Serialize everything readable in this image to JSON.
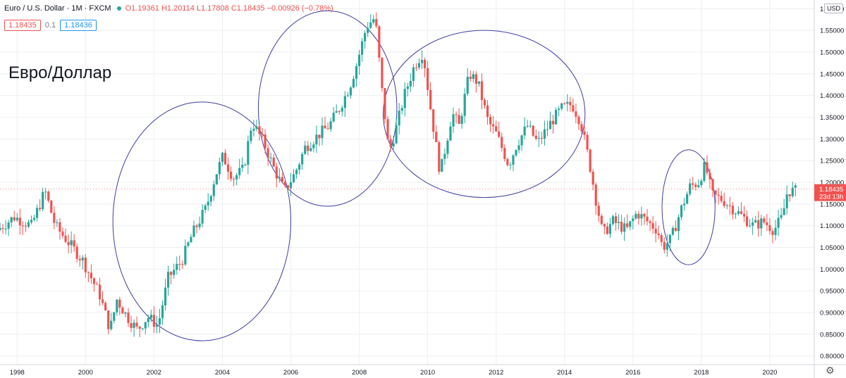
{
  "header": {
    "symbol": "Euro / U.S. Dollar · 1M · FXCM",
    "ohlc": "O1.19361 H1.20114 L1.17808 C1.18435 −0.00926 (−0.78%)",
    "bid_price": "1.18435",
    "spread": "0.1",
    "ask_price": "1.18436"
  },
  "watermark": "Евро/Доллар",
  "currency_button": "USD",
  "settings_icon": "gear-icon",
  "colors": {
    "up": "#26a69a",
    "down": "#ef5350",
    "ellipse": "#3f3f9f",
    "grid": "#eceff2"
  },
  "chart_data": {
    "type": "candlestick",
    "title": "Euro / U.S. Dollar",
    "interval": "1M",
    "source": "FXCM",
    "x_ticks": [
      "1998",
      "2000",
      "2002",
      "2004",
      "2006",
      "2008",
      "2010",
      "2012",
      "2014",
      "2016",
      "2018",
      "2020"
    ],
    "y_ticks": [
      "0.80000",
      "0.85000",
      "0.90000",
      "0.95000",
      "1.00000",
      "1.05000",
      "1.10000",
      "1.15000",
      "1.20000",
      "1.25000",
      "1.30000",
      "1.35000",
      "1.40000",
      "1.45000",
      "1.50000",
      "1.55000",
      "1.60000"
    ],
    "ylim": [
      0.78,
      1.62
    ],
    "xlim": [
      1997.5,
      2021.3
    ],
    "last_price": "1.18435",
    "countdown": "23d 13h",
    "close_series": [
      {
        "t": 1997.5,
        "v": 1.09
      },
      {
        "t": 1998.0,
        "v": 1.12
      },
      {
        "t": 1998.5,
        "v": 1.1
      },
      {
        "t": 1998.9,
        "v": 1.18
      },
      {
        "t": 1999.2,
        "v": 1.1
      },
      {
        "t": 1999.6,
        "v": 1.06
      },
      {
        "t": 2000.0,
        "v": 1.02
      },
      {
        "t": 2000.5,
        "v": 0.94
      },
      {
        "t": 2000.8,
        "v": 0.86
      },
      {
        "t": 2001.0,
        "v": 0.93
      },
      {
        "t": 2001.3,
        "v": 0.89
      },
      {
        "t": 2001.6,
        "v": 0.86
      },
      {
        "t": 2001.9,
        "v": 0.89
      },
      {
        "t": 2002.2,
        "v": 0.87
      },
      {
        "t": 2002.5,
        "v": 0.98
      },
      {
        "t": 2002.9,
        "v": 1.02
      },
      {
        "t": 2003.2,
        "v": 1.08
      },
      {
        "t": 2003.6,
        "v": 1.14
      },
      {
        "t": 2003.9,
        "v": 1.22
      },
      {
        "t": 2004.1,
        "v": 1.26
      },
      {
        "t": 2004.4,
        "v": 1.21
      },
      {
        "t": 2004.7,
        "v": 1.23
      },
      {
        "t": 2004.95,
        "v": 1.34
      },
      {
        "t": 2005.3,
        "v": 1.29
      },
      {
        "t": 2005.6,
        "v": 1.23
      },
      {
        "t": 2005.9,
        "v": 1.18
      },
      {
        "t": 2006.2,
        "v": 1.22
      },
      {
        "t": 2006.5,
        "v": 1.28
      },
      {
        "t": 2006.9,
        "v": 1.31
      },
      {
        "t": 2007.2,
        "v": 1.33
      },
      {
        "t": 2007.5,
        "v": 1.37
      },
      {
        "t": 2007.8,
        "v": 1.42
      },
      {
        "t": 2008.0,
        "v": 1.47
      },
      {
        "t": 2008.3,
        "v": 1.56
      },
      {
        "t": 2008.55,
        "v": 1.58
      },
      {
        "t": 2008.75,
        "v": 1.41
      },
      {
        "t": 2008.95,
        "v": 1.27
      },
      {
        "t": 2009.15,
        "v": 1.32
      },
      {
        "t": 2009.4,
        "v": 1.4
      },
      {
        "t": 2009.7,
        "v": 1.47
      },
      {
        "t": 2009.95,
        "v": 1.5
      },
      {
        "t": 2010.15,
        "v": 1.38
      },
      {
        "t": 2010.45,
        "v": 1.22
      },
      {
        "t": 2010.8,
        "v": 1.36
      },
      {
        "t": 2011.0,
        "v": 1.33
      },
      {
        "t": 2011.3,
        "v": 1.45
      },
      {
        "t": 2011.55,
        "v": 1.43
      },
      {
        "t": 2011.85,
        "v": 1.34
      },
      {
        "t": 2012.1,
        "v": 1.31
      },
      {
        "t": 2012.45,
        "v": 1.24
      },
      {
        "t": 2012.7,
        "v": 1.29
      },
      {
        "t": 2013.0,
        "v": 1.33
      },
      {
        "t": 2013.3,
        "v": 1.29
      },
      {
        "t": 2013.7,
        "v": 1.34
      },
      {
        "t": 2014.0,
        "v": 1.37
      },
      {
        "t": 2014.3,
        "v": 1.38
      },
      {
        "t": 2014.55,
        "v": 1.34
      },
      {
        "t": 2014.8,
        "v": 1.25
      },
      {
        "t": 2015.0,
        "v": 1.16
      },
      {
        "t": 2015.2,
        "v": 1.08
      },
      {
        "t": 2015.5,
        "v": 1.11
      },
      {
        "t": 2015.9,
        "v": 1.09
      },
      {
        "t": 2016.2,
        "v": 1.13
      },
      {
        "t": 2016.5,
        "v": 1.11
      },
      {
        "t": 2016.8,
        "v": 1.09
      },
      {
        "t": 2016.95,
        "v": 1.05
      },
      {
        "t": 2017.2,
        "v": 1.07
      },
      {
        "t": 2017.5,
        "v": 1.14
      },
      {
        "t": 2017.75,
        "v": 1.19
      },
      {
        "t": 2018.0,
        "v": 1.2
      },
      {
        "t": 2018.2,
        "v": 1.24
      },
      {
        "t": 2018.4,
        "v": 1.17
      },
      {
        "t": 2018.7,
        "v": 1.16
      },
      {
        "t": 2019.0,
        "v": 1.14
      },
      {
        "t": 2019.3,
        "v": 1.12
      },
      {
        "t": 2019.6,
        "v": 1.1
      },
      {
        "t": 2019.9,
        "v": 1.11
      },
      {
        "t": 2020.2,
        "v": 1.09
      },
      {
        "t": 2020.45,
        "v": 1.12
      },
      {
        "t": 2020.6,
        "v": 1.18
      },
      {
        "t": 2020.75,
        "v": 1.18
      }
    ],
    "annotations": [
      {
        "type": "ellipse",
        "x": [
          2000.8,
          2006.0
        ],
        "y": [
          0.835,
          1.385
        ]
      },
      {
        "type": "ellipse",
        "x": [
          2005.05,
          2009.1
        ],
        "y": [
          1.145,
          1.595
        ]
      },
      {
        "type": "ellipse",
        "x": [
          2008.7,
          2014.6
        ],
        "y": [
          1.165,
          1.55
        ]
      },
      {
        "type": "ellipse",
        "x": [
          2016.85,
          2018.4
        ],
        "y": [
          1.01,
          1.275
        ]
      }
    ]
  }
}
